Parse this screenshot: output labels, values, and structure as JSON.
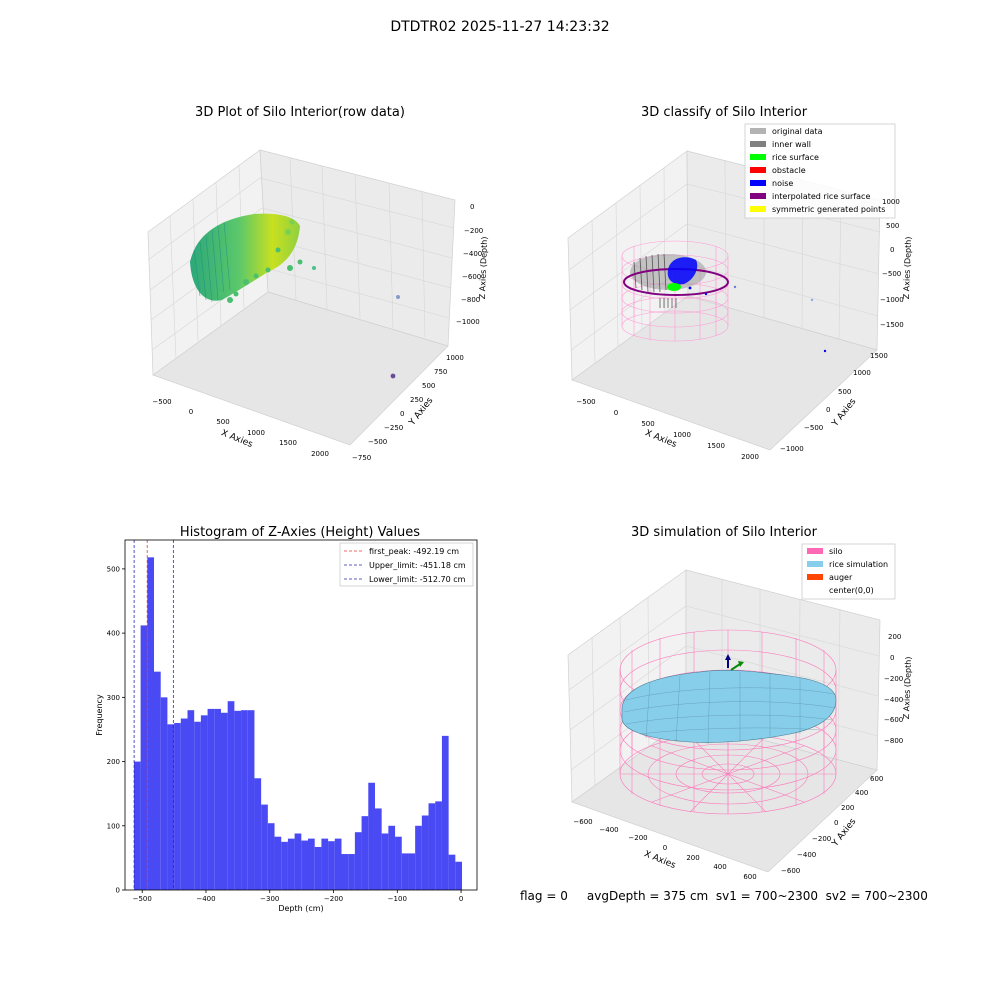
{
  "suptitle": "DTDTR02 2025-11-27 14:23:32",
  "panels": {
    "raw": {
      "title": "3D Plot of Silo Interior(row data)",
      "xlabel": "X Axies",
      "ylabel": "Y Axies",
      "zlabel": "Z Axies (Depth)",
      "xticks": [
        "−500",
        "0",
        "500",
        "1000",
        "1500",
        "2000"
      ],
      "yticks": [
        "−750",
        "−500",
        "−250",
        "0",
        "250",
        "500",
        "750",
        "1000"
      ],
      "zticks": [
        "0",
        "−200",
        "−400",
        "−600",
        "−800",
        "−1000"
      ]
    },
    "classify": {
      "title": "3D classify of Silo Interior",
      "xlabel": "X Axies",
      "ylabel": "Y Axies",
      "zlabel": "Z Axies (Depth)",
      "xticks": [
        "−500",
        "0",
        "500",
        "1000",
        "1500",
        "2000"
      ],
      "yticks": [
        "−1000",
        "−500",
        "0",
        "500",
        "1000",
        "1500"
      ],
      "zticks": [
        "1000",
        "500",
        "0",
        "−500",
        "−1000",
        "−1500"
      ],
      "legend": [
        {
          "label": "original data",
          "color": "#b3b3b3"
        },
        {
          "label": "inner wall",
          "color": "#808080"
        },
        {
          "label": "rice surface",
          "color": "#00ff00"
        },
        {
          "label": "obstacle",
          "color": "#ff0000"
        },
        {
          "label": "noise",
          "color": "#0000ff"
        },
        {
          "label": "interpolated rice surface",
          "color": "#800080"
        },
        {
          "label": "symmetric generated points",
          "color": "#ffff00"
        }
      ]
    },
    "simulation": {
      "title": "3D simulation of Silo Interior",
      "xlabel": "X Axies",
      "ylabel": "Y Axies",
      "zlabel": "Z Axies (Depth)",
      "xticks": [
        "−600",
        "−400",
        "−200",
        "0",
        "200",
        "400",
        "600"
      ],
      "yticks": [
        "−600",
        "−400",
        "−200",
        "0",
        "200",
        "400",
        "600"
      ],
      "zticks": [
        "200",
        "0",
        "−200",
        "−400",
        "−600",
        "−800"
      ],
      "legend": [
        {
          "label": "silo",
          "color": "#ff69b4"
        },
        {
          "label": "rice simulation",
          "color": "#87ceeb"
        },
        {
          "label": "auger",
          "color": "#ff4500"
        },
        {
          "label": "center(0,0)",
          "color": ""
        }
      ]
    }
  },
  "status_line": "flag = 0     avgDepth = 375 cm  sv1 = 700~2300  sv2 = 700~2300",
  "chart_data": [
    {
      "type": "bar",
      "title": "Histogram of Z-Axies (Height) Values",
      "xlabel": "Depth (cm)",
      "ylabel": "Frequency",
      "xlim": [
        -527,
        25
      ],
      "ylim": [
        0,
        545
      ],
      "xticks": [
        -500,
        -400,
        -300,
        -200,
        -100,
        0
      ],
      "yticks": [
        0,
        100,
        200,
        300,
        400,
        500
      ],
      "bar_color": "#4a4af5",
      "bin_start": -513,
      "bin_width": 10.5,
      "values": [
        200,
        412,
        518,
        340,
        300,
        258,
        260,
        267,
        280,
        262,
        272,
        282,
        282,
        276,
        294,
        279,
        280,
        280,
        174,
        133,
        104,
        83,
        75,
        80,
        88,
        77,
        80,
        67,
        80,
        76,
        80,
        56,
        56,
        90,
        115,
        167,
        127,
        88,
        100,
        83,
        57,
        57,
        100,
        116,
        135,
        138,
        240,
        55,
        44
      ],
      "vlines": [
        {
          "label": "first_peak: -492.19 cm",
          "x": -492.19,
          "color": "#e8383a"
        },
        {
          "label": "Upper_limit: -451.18 cm",
          "x": -451.18,
          "color": "#2a2ab8"
        },
        {
          "label": "Lower_limit: -512.70 cm",
          "x": -512.7,
          "color": "#2a2ab8"
        }
      ],
      "legend_position": "top-right"
    }
  ]
}
